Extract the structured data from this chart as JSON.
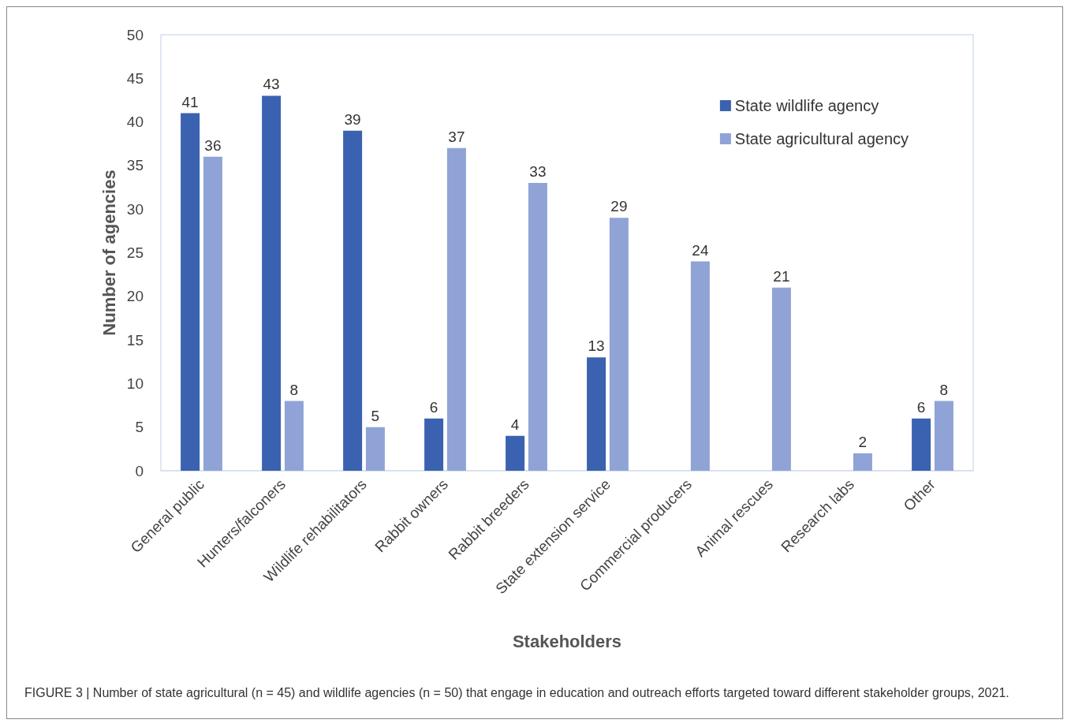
{
  "chart_data": {
    "type": "bar",
    "xlabel": "Stakeholders",
    "ylabel": "Number of agencies",
    "categories": [
      "General public",
      "Hunters/falconers",
      "Wildlife rehabilitators",
      "Rabbit owners",
      "Rabbit breeders",
      "State extension service",
      "Commercial producers",
      "Animal rescues",
      "Research labs",
      "Other"
    ],
    "series": [
      {
        "name": "State wildlife agency",
        "color": "#3a62b0",
        "values": [
          41,
          43,
          39,
          6,
          4,
          13,
          0,
          0,
          0,
          6
        ],
        "value_labels": [
          "41",
          "43",
          "39",
          "6",
          "4",
          "13",
          null,
          null,
          null,
          "6"
        ]
      },
      {
        "name": "State agricultural agency",
        "color": "#8fa3d6",
        "values": [
          36,
          8,
          5,
          37,
          33,
          29,
          24,
          21,
          2,
          8
        ],
        "value_labels": [
          "36",
          "8",
          "5",
          "37",
          "33",
          "29",
          "24",
          "21",
          "2",
          "8"
        ]
      }
    ],
    "ylim": [
      0,
      50
    ],
    "yticks": [
      0,
      5,
      10,
      15,
      20,
      25,
      30,
      35,
      40,
      45,
      50
    ],
    "grid": false,
    "legend": "top right",
    "annotations": [
      "FIGURE 3 | Number of state agricultural (n = 45) and wildlife agencies (n = 50) that engage in education and outreach efforts targeted toward different stakeholder groups, 2021."
    ]
  }
}
